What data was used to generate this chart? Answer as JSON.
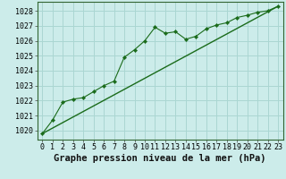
{
  "xlabel": "Graphe pression niveau de la mer (hPa)",
  "background_color": "#ccecea",
  "grid_color": "#aad6d2",
  "line_color": "#1a6b1a",
  "xlim_min": -0.5,
  "xlim_max": 23.5,
  "ylim_min": 1019.4,
  "ylim_max": 1028.6,
  "yticks": [
    1020,
    1021,
    1022,
    1023,
    1024,
    1025,
    1026,
    1027,
    1028
  ],
  "xticks": [
    0,
    1,
    2,
    3,
    4,
    5,
    6,
    7,
    8,
    9,
    10,
    11,
    12,
    13,
    14,
    15,
    16,
    17,
    18,
    19,
    20,
    21,
    22,
    23
  ],
  "series1_x": [
    0,
    1,
    2,
    3,
    4,
    5,
    6,
    7,
    8,
    9,
    10,
    11,
    12,
    13,
    14,
    15,
    16,
    17,
    18,
    19,
    20,
    21,
    22,
    23
  ],
  "series1_y": [
    1019.8,
    1020.7,
    1021.9,
    1022.1,
    1022.2,
    1022.6,
    1023.0,
    1023.3,
    1024.9,
    1025.4,
    1026.0,
    1026.9,
    1026.5,
    1026.6,
    1026.1,
    1026.3,
    1026.8,
    1027.05,
    1027.2,
    1027.55,
    1027.7,
    1027.9,
    1028.0,
    1028.3
  ],
  "series2_x": [
    0,
    23
  ],
  "series2_y": [
    1019.8,
    1028.3
  ],
  "title_fontsize": 7.5,
  "tick_fontsize": 6,
  "spine_color": "#336633"
}
